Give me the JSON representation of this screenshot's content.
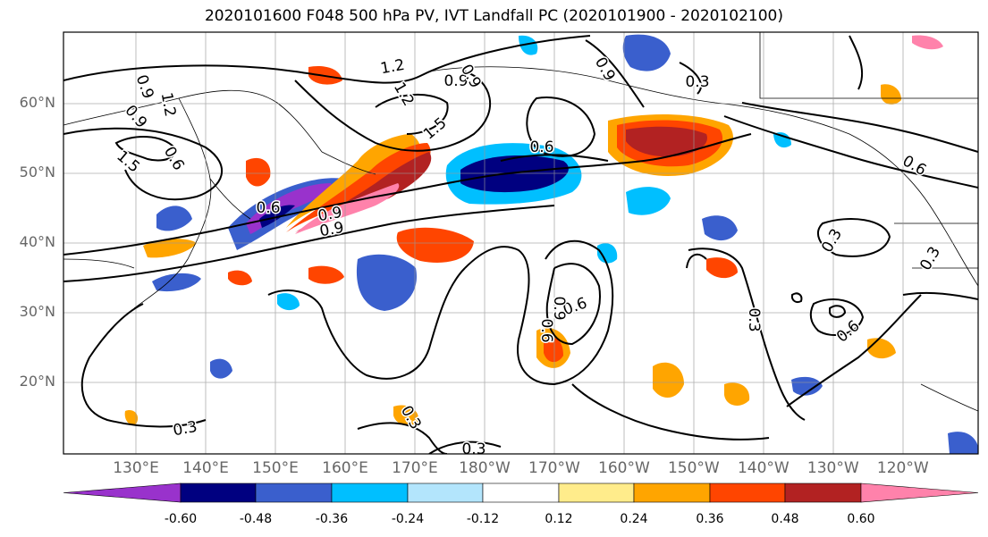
{
  "title": "2020101600 F048 500 hPa PV, IVT Landfall PC (2020101900 - 2020102100)",
  "map": {
    "lat_labels": [
      {
        "text": "60°N",
        "lat": 60
      },
      {
        "text": "50°N",
        "lat": 50
      },
      {
        "text": "40°N",
        "lat": 40
      },
      {
        "text": "30°N",
        "lat": 30
      },
      {
        "text": "20°N",
        "lat": 20
      }
    ],
    "lon_labels": [
      {
        "text": "130°E",
        "lon": 130
      },
      {
        "text": "140°E",
        "lon": 140
      },
      {
        "text": "150°E",
        "lon": 150
      },
      {
        "text": "160°E",
        "lon": 160
      },
      {
        "text": "170°E",
        "lon": 170
      },
      {
        "text": "180°W",
        "lon": 180
      },
      {
        "text": "170°W",
        "lon": 190
      },
      {
        "text": "160°W",
        "lon": 200
      },
      {
        "text": "150°W",
        "lon": 210
      },
      {
        "text": "140°W",
        "lon": 220
      },
      {
        "text": "130°W",
        "lon": 230
      },
      {
        "text": "120°W",
        "lon": 240
      }
    ],
    "contour_labels": [
      "1.2",
      "0.9",
      "0.9",
      "0.3",
      "1.2",
      "0.9",
      "0.9",
      "1.5",
      "1.2",
      "1.5",
      "0.6",
      "0.6",
      "0.9",
      "0.6",
      "0.9",
      "0.9",
      "0.6",
      "0.9",
      "0.6",
      "0.3",
      "0.3",
      "0.3",
      "0.3",
      "0.3",
      "0.3",
      "0.6",
      "0.6"
    ]
  },
  "colorbar": {
    "colors": [
      "#9932cc",
      "#000080",
      "#3a5fcd",
      "#00bfff",
      "#b3e5fc",
      "#ffffff",
      "#ffec8b",
      "#ffa500",
      "#ff4500",
      "#b22222",
      "#ff82ab"
    ],
    "levels": [
      "-0.60",
      "-0.48",
      "-0.36",
      "-0.24",
      "-0.12",
      "0.12",
      "0.24",
      "0.36",
      "0.48",
      "0.60"
    ]
  }
}
